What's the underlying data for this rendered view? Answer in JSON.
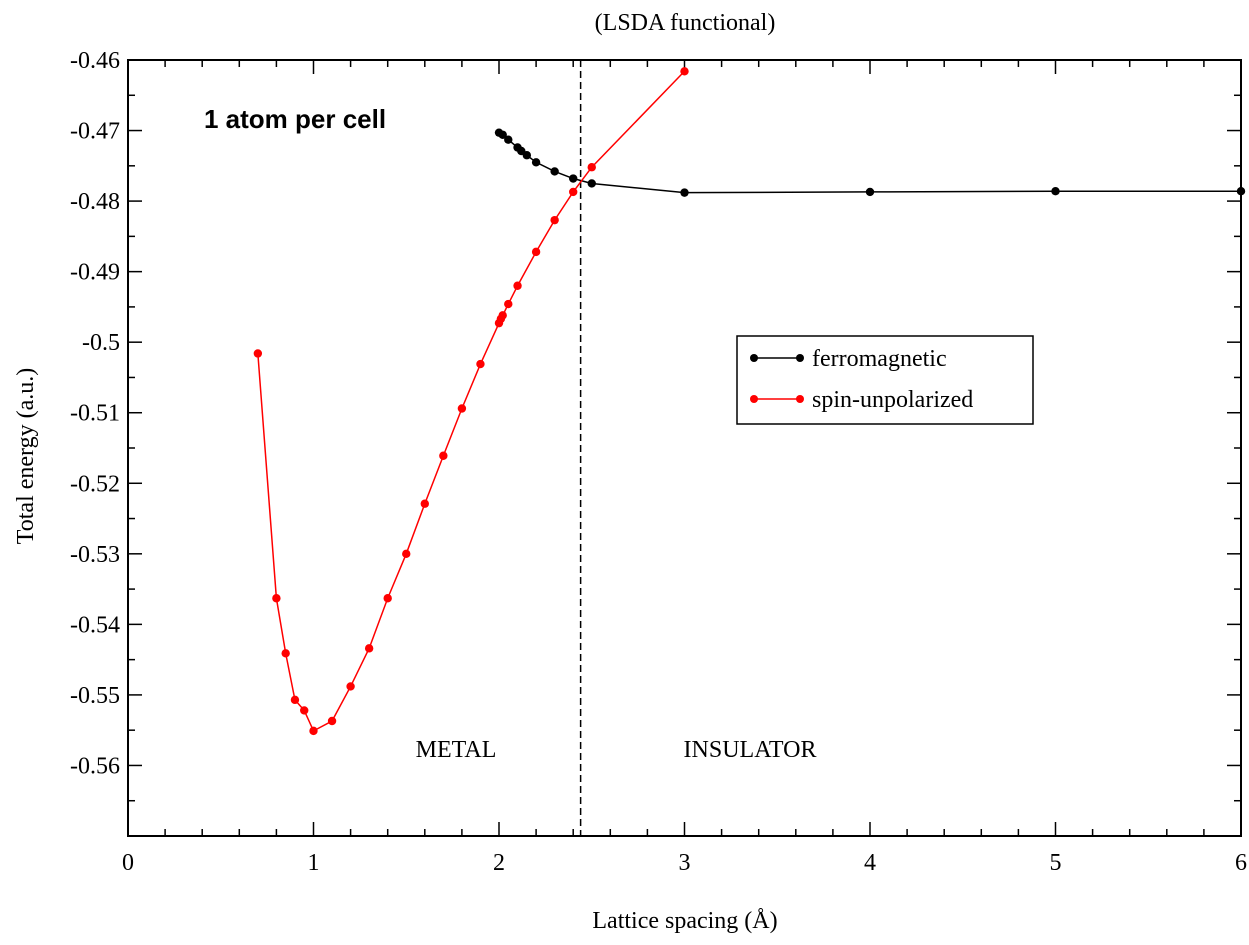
{
  "chart_data": {
    "type": "line",
    "title": "(LSDA functional)",
    "xlabel": "Lattice spacing (Å)",
    "ylabel": "Total energy (a.u.)",
    "xlim": [
      0,
      6
    ],
    "ylim": [
      -0.57,
      -0.46
    ],
    "xticks": [
      0,
      1,
      2,
      3,
      4,
      5,
      6
    ],
    "xtick_labels": [
      "0",
      "1",
      "2",
      "3",
      "4",
      "5",
      "6"
    ],
    "yticks": [
      -0.46,
      -0.47,
      -0.48,
      -0.49,
      -0.5,
      -0.51,
      -0.52,
      -0.53,
      -0.54,
      -0.55,
      -0.56
    ],
    "ytick_labels": [
      "-0.46",
      "-0.47",
      "-0.48",
      "-0.49",
      "-0.5",
      "-0.51",
      "-0.52",
      "-0.53",
      "-0.54",
      "-0.55",
      "-0.56"
    ],
    "grid": false,
    "legend_position": "right",
    "annotations": {
      "cell": "1 atom per cell",
      "metal": "METAL",
      "insulator": "INSULATOR"
    },
    "vline_x": 2.44,
    "series": [
      {
        "name": "ferromagnetic",
        "color": "#000000",
        "x": [
          2.0,
          2.02,
          2.05,
          2.1,
          2.12,
          2.15,
          2.2,
          2.3,
          2.4,
          2.5,
          3.0,
          4.0,
          5.0,
          6.0
        ],
        "y": [
          -0.4703,
          -0.4706,
          -0.4713,
          -0.4724,
          -0.4729,
          -0.4735,
          -0.4745,
          -0.4758,
          -0.4768,
          -0.4775,
          -0.4788,
          -0.4787,
          -0.4786,
          -0.4786
        ]
      },
      {
        "name": "spin-unpolarized",
        "color": "#ff0000",
        "x": [
          0.7,
          0.8,
          0.85,
          0.9,
          0.95,
          1.0,
          1.1,
          1.2,
          1.3,
          1.4,
          1.5,
          1.6,
          1.7,
          1.8,
          1.9,
          2.0,
          2.01,
          2.02,
          2.05,
          2.1,
          2.2,
          2.3,
          2.4,
          2.5,
          3.0
        ],
        "y": [
          -0.5016,
          -0.5363,
          -0.5441,
          -0.5507,
          -0.5522,
          -0.5551,
          -0.5537,
          -0.5488,
          -0.5434,
          -0.5363,
          -0.53,
          -0.5229,
          -0.5161,
          -0.5094,
          -0.5031,
          -0.4973,
          -0.4967,
          -0.4962,
          -0.4946,
          -0.492,
          -0.4872,
          -0.4827,
          -0.4787,
          -0.4752,
          -0.4616
        ]
      }
    ]
  }
}
